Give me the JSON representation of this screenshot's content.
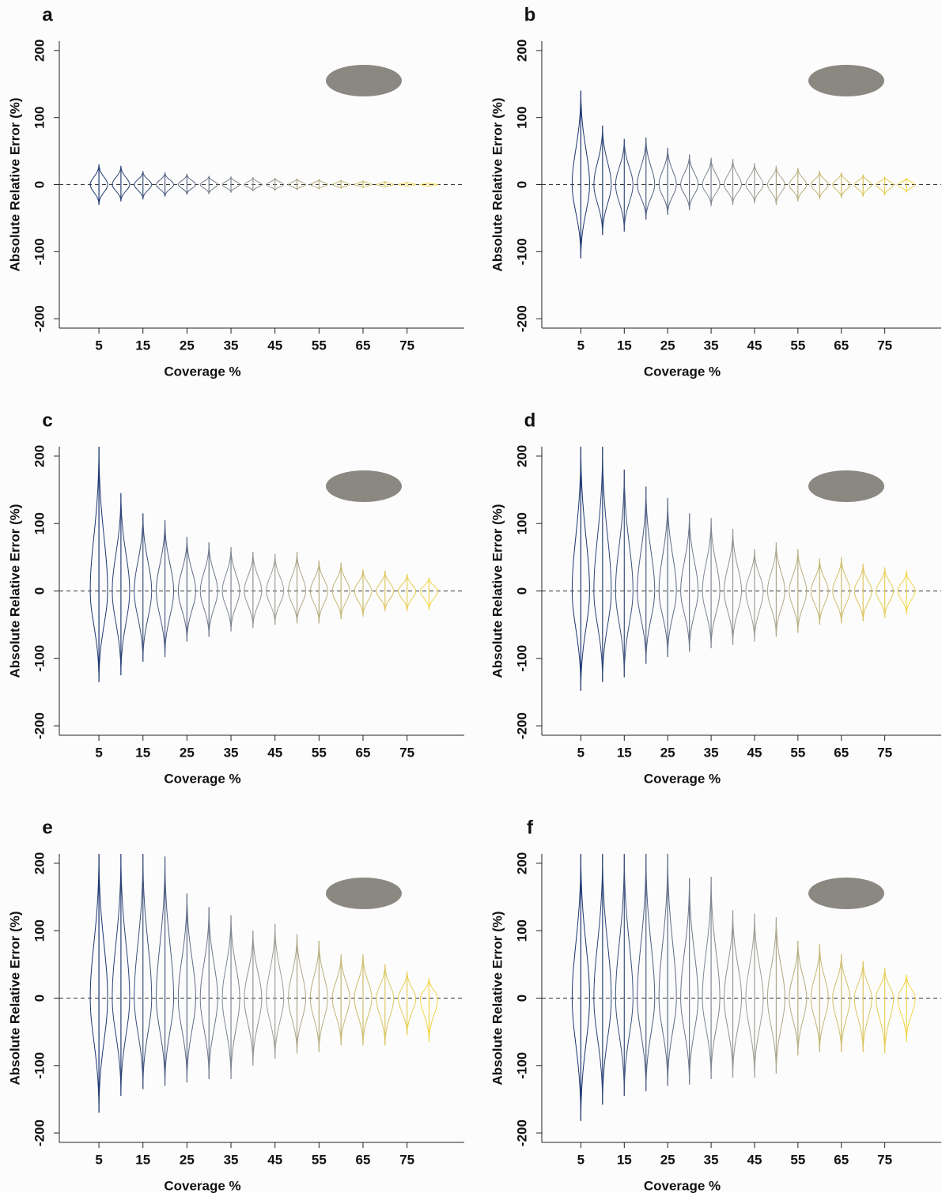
{
  "chart_data": [
    {
      "type": "violin",
      "label": "a",
      "ylabel": "Absolute Relative Error (%)",
      "xlabel": "Coverage %",
      "x": [
        5,
        10,
        15,
        20,
        25,
        30,
        35,
        40,
        45,
        50,
        55,
        60,
        65,
        70,
        75,
        80
      ],
      "max": [
        30,
        28,
        20,
        18,
        16,
        13,
        12,
        11,
        10,
        9,
        8,
        7,
        6,
        5,
        4,
        3
      ],
      "min": [
        -30,
        -25,
        -22,
        -18,
        -15,
        -14,
        -12,
        -10,
        -9,
        -8,
        -7,
        -6,
        -5,
        -4,
        -3,
        -3
      ],
      "xlim": [
        -4,
        88
      ],
      "xticks": [
        5,
        15,
        25,
        35,
        45,
        55,
        65,
        75
      ],
      "ylim": [
        -214,
        214
      ],
      "yticks": [
        -200,
        -100,
        0,
        100,
        200
      ],
      "color_range": [
        "#1a3570",
        "#9a9a9a",
        "#f2d64b"
      ]
    },
    {
      "type": "violin",
      "label": "b",
      "ylabel": "Absolute Relative Error (%)",
      "xlabel": "Coverage %",
      "x": [
        5,
        10,
        15,
        20,
        25,
        30,
        35,
        40,
        45,
        50,
        55,
        60,
        65,
        70,
        75,
        80
      ],
      "max": [
        140,
        88,
        68,
        70,
        55,
        45,
        40,
        38,
        32,
        28,
        25,
        20,
        18,
        15,
        12,
        10
      ],
      "min": [
        -110,
        -75,
        -70,
        -52,
        -45,
        -38,
        -32,
        -30,
        -28,
        -30,
        -25,
        -22,
        -20,
        -18,
        -16,
        -12
      ],
      "xlim": [
        -4,
        88
      ],
      "xticks": [
        5,
        15,
        25,
        35,
        45,
        55,
        65,
        75
      ],
      "ylim": [
        -214,
        214
      ],
      "yticks": [
        -200,
        -100,
        0,
        100,
        200
      ],
      "color_range": [
        "#1a3570",
        "#9a9a9a",
        "#f2d64b"
      ]
    },
    {
      "type": "violin",
      "label": "c",
      "ylabel": "Absolute Relative Error (%)",
      "xlabel": "Coverage %",
      "x": [
        5,
        10,
        15,
        20,
        25,
        30,
        35,
        40,
        45,
        50,
        55,
        60,
        65,
        70,
        75,
        80
      ],
      "max": [
        214,
        145,
        115,
        105,
        80,
        72,
        65,
        58,
        55,
        58,
        45,
        42,
        32,
        30,
        25,
        20
      ],
      "min": [
        -135,
        -125,
        -105,
        -98,
        -75,
        -68,
        -60,
        -55,
        -50,
        -48,
        -48,
        -42,
        -38,
        -30,
        -30,
        -28
      ],
      "xlim": [
        -4,
        88
      ],
      "xticks": [
        5,
        15,
        25,
        35,
        45,
        55,
        65,
        75
      ],
      "ylim": [
        -214,
        214
      ],
      "yticks": [
        -200,
        -100,
        0,
        100,
        200
      ],
      "color_range": [
        "#1a3570",
        "#9a9a9a",
        "#f2d64b"
      ]
    },
    {
      "type": "violin",
      "label": "d",
      "ylabel": "Absolute Relative Error (%)",
      "xlabel": "Coverage %",
      "x": [
        5,
        10,
        15,
        20,
        25,
        30,
        35,
        40,
        45,
        50,
        55,
        60,
        65,
        70,
        75,
        80
      ],
      "max": [
        214,
        214,
        180,
        155,
        138,
        115,
        108,
        92,
        62,
        72,
        62,
        48,
        50,
        40,
        35,
        30
      ],
      "min": [
        -148,
        -135,
        -128,
        -108,
        -98,
        -90,
        -85,
        -80,
        -75,
        -68,
        -62,
        -50,
        -48,
        -45,
        -40,
        -35
      ],
      "xlim": [
        -4,
        88
      ],
      "xticks": [
        5,
        15,
        25,
        35,
        45,
        55,
        65,
        75
      ],
      "ylim": [
        -214,
        214
      ],
      "yticks": [
        -200,
        -100,
        0,
        100,
        200
      ],
      "color_range": [
        "#1a3570",
        "#9a9a9a",
        "#f2d64b"
      ]
    },
    {
      "type": "violin",
      "label": "e",
      "ylabel": "Absolute Relative Error (%)",
      "xlabel": "Coverage %",
      "x": [
        5,
        10,
        15,
        20,
        25,
        30,
        35,
        40,
        45,
        50,
        55,
        60,
        65,
        70,
        75,
        80
      ],
      "max": [
        214,
        214,
        214,
        210,
        155,
        135,
        123,
        100,
        110,
        95,
        85,
        65,
        65,
        50,
        40,
        30
      ],
      "min": [
        -170,
        -145,
        -135,
        -130,
        -125,
        -120,
        -120,
        -100,
        -90,
        -82,
        -80,
        -70,
        -70,
        -70,
        -55,
        -65
      ],
      "xlim": [
        -4,
        88
      ],
      "xticks": [
        5,
        15,
        25,
        35,
        45,
        55,
        65,
        75
      ],
      "ylim": [
        -214,
        214
      ],
      "yticks": [
        -200,
        -100,
        0,
        100,
        200
      ],
      "color_range": [
        "#1a3570",
        "#9a9a9a",
        "#f2d64b"
      ]
    },
    {
      "type": "violin",
      "label": "f",
      "ylabel": "Absolute Relative Error (%)",
      "xlabel": "Coverage %",
      "x": [
        5,
        10,
        15,
        20,
        25,
        30,
        35,
        40,
        45,
        50,
        55,
        60,
        65,
        70,
        75,
        80
      ],
      "max": [
        214,
        214,
        214,
        214,
        214,
        178,
        180,
        130,
        125,
        120,
        85,
        80,
        65,
        55,
        45,
        35
      ],
      "min": [
        -182,
        -158,
        -145,
        -138,
        -130,
        -128,
        -120,
        -118,
        -118,
        -112,
        -85,
        -80,
        -80,
        -80,
        -82,
        -65
      ],
      "xlim": [
        -4,
        88
      ],
      "xticks": [
        5,
        15,
        25,
        35,
        45,
        55,
        65,
        75
      ],
      "ylim": [
        -214,
        214
      ],
      "yticks": [
        -200,
        -100,
        0,
        100,
        200
      ],
      "color_range": [
        "#1a3570",
        "#9a9a9a",
        "#f2d64b"
      ]
    }
  ]
}
